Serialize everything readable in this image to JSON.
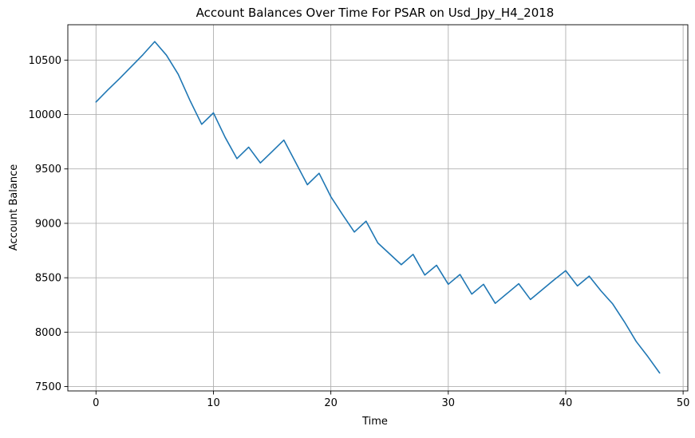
{
  "chart_data": {
    "type": "line",
    "title": "Account Balances Over Time For PSAR on Usd_Jpy_H4_2018",
    "xlabel": "Time",
    "ylabel": "Account Balance",
    "xlim": [
      -2.4,
      50.4
    ],
    "ylim": [
      7460,
      10825
    ],
    "xticks": [
      0,
      10,
      20,
      30,
      40,
      50
    ],
    "yticks": [
      7500,
      8000,
      8500,
      9000,
      9500,
      10000,
      10500
    ],
    "grid": true,
    "legend": "none",
    "series": [
      {
        "color": "#1f77b4",
        "x": [
          0,
          1,
          2,
          3,
          4,
          5,
          6,
          7,
          8,
          9,
          10,
          11,
          12,
          13,
          14,
          15,
          16,
          17,
          18,
          19,
          20,
          21,
          22,
          23,
          24,
          25,
          26,
          27,
          28,
          29,
          30,
          31,
          32,
          33,
          34,
          35,
          36,
          37,
          38,
          39,
          40,
          41,
          42,
          43,
          44,
          45,
          46,
          47,
          48
        ],
        "values": [
          10115,
          10225,
          10330,
          10440,
          10550,
          10670,
          10545,
          10370,
          10130,
          9910,
          10015,
          9790,
          9595,
          9700,
          9555,
          9660,
          9765,
          9560,
          9355,
          9460,
          9245,
          9080,
          8920,
          9020,
          8820,
          8720,
          8620,
          8715,
          8525,
          8615,
          8440,
          8530,
          8350,
          8440,
          8265,
          8355,
          8445,
          8300,
          8390,
          8480,
          8565,
          8425,
          8515,
          8380,
          8260,
          8095,
          7915,
          7775,
          7625
        ]
      }
    ]
  }
}
